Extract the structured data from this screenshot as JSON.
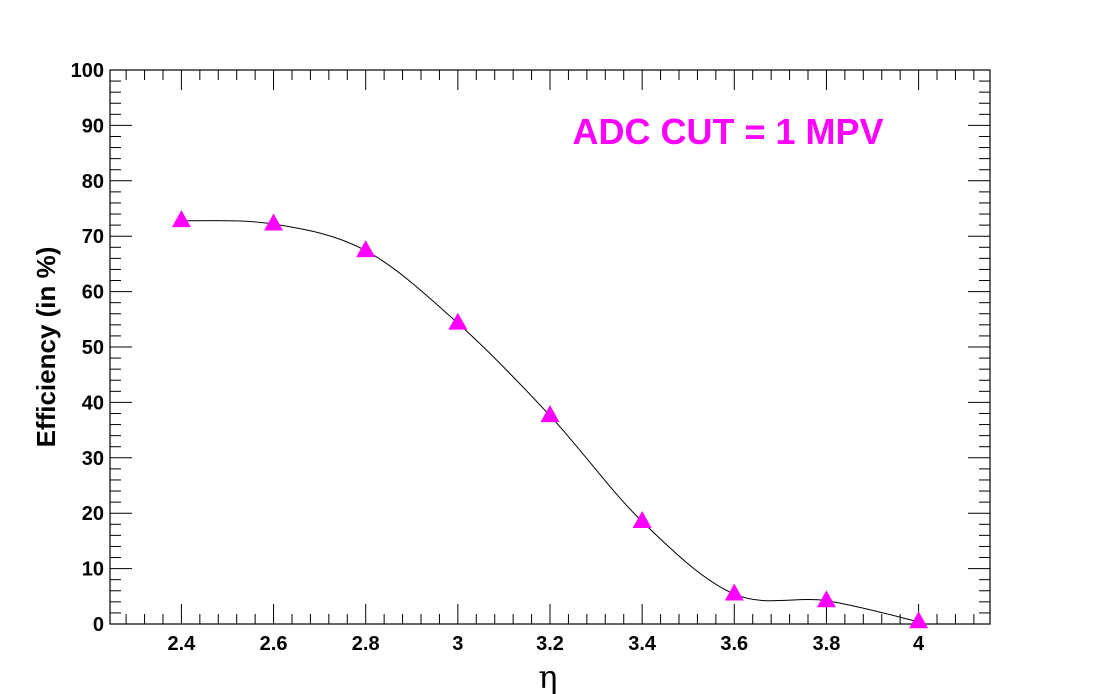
{
  "chart_data": {
    "type": "line",
    "title": "",
    "annotation": "ADC CUT = 1 MPV",
    "xlabel": "η",
    "ylabel": "Efficiency (in %)",
    "xlim": [
      2.245,
      4.155
    ],
    "ylim": [
      0,
      100
    ],
    "x_ticks": [
      "2.4",
      "2.6",
      "2.8",
      "3",
      "3.2",
      "3.4",
      "3.6",
      "3.8",
      "4"
    ],
    "y_ticks": [
      "0",
      "10",
      "20",
      "30",
      "40",
      "50",
      "60",
      "70",
      "80",
      "90",
      "100"
    ],
    "grid": false,
    "series": [
      {
        "marker": "triangle-up",
        "color": "#ff00ff",
        "line_color": "#000000",
        "x": [
          2.4,
          2.6,
          2.8,
          3.0,
          3.2,
          3.4,
          3.6,
          3.8,
          4.0
        ],
        "y": [
          72.8,
          72.2,
          67.4,
          54.3,
          37.6,
          18.5,
          5.4,
          4.2,
          0.4
        ]
      }
    ]
  }
}
